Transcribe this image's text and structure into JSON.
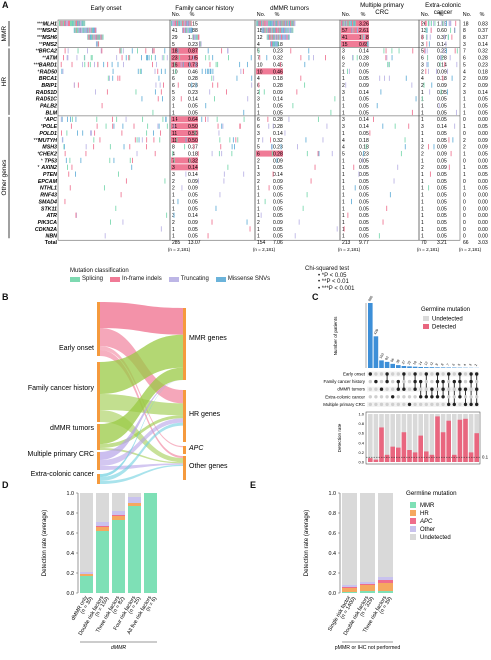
{
  "panels": {
    "A": "A",
    "B": "B",
    "C": "C",
    "D": "D",
    "E": "E"
  },
  "panelA": {
    "groups": [
      "MMR",
      "HR",
      "Other genes"
    ],
    "headers": [
      "Early onset",
      "Family cancer history",
      "dMMR tumors",
      "Multiple primary CRC",
      "Extra-colonic cancer"
    ],
    "col_no": "No.",
    "col_pct": "%",
    "rows": [
      {
        "gene": "MLH1",
        "stars": "***",
        "g": 0
      },
      {
        "gene": "MSH2",
        "stars": "***",
        "g": 0
      },
      {
        "gene": "MSH6",
        "stars": "***",
        "g": 0
      },
      {
        "gene": "PMS2",
        "stars": "**",
        "g": 0
      },
      {
        "gene": "BRCA2",
        "stars": "**",
        "g": 1
      },
      {
        "gene": "ATM",
        "stars": "**",
        "g": 1
      },
      {
        "gene": "BARD1",
        "stars": "***",
        "g": 1
      },
      {
        "gene": "RAD50",
        "stars": "*",
        "g": 1
      },
      {
        "gene": "BRCA1",
        "stars": "",
        "g": 1
      },
      {
        "gene": "BRIP1",
        "stars": "",
        "g": 1
      },
      {
        "gene": "RAD51D",
        "stars": "",
        "g": 1
      },
      {
        "gene": "RAD51C",
        "stars": "",
        "g": 1
      },
      {
        "gene": "PALB2",
        "stars": "",
        "g": 1
      },
      {
        "gene": "BLM",
        "stars": "",
        "g": 1
      },
      {
        "gene": "APC",
        "stars": "*",
        "g": 2
      },
      {
        "gene": "POLE",
        "stars": "*",
        "g": 2
      },
      {
        "gene": "POLD1",
        "stars": "",
        "g": 2
      },
      {
        "gene": "MUTYH",
        "stars": "***",
        "g": 2
      },
      {
        "gene": "MSH3",
        "stars": "",
        "g": 2
      },
      {
        "gene": "CHEK2",
        "stars": "*",
        "g": 2
      },
      {
        "gene": "TP53",
        "stars": "*",
        "g": 2
      },
      {
        "gene": "AXIN2",
        "stars": "*",
        "g": 2
      },
      {
        "gene": "PTEN",
        "stars": "",
        "g": 2
      },
      {
        "gene": "EPCAM",
        "stars": "",
        "g": 2
      },
      {
        "gene": "NTHL1",
        "stars": "",
        "g": 2
      },
      {
        "gene": "RNF43",
        "stars": "",
        "g": 2
      },
      {
        "gene": "SMAD4",
        "stars": "",
        "g": 2
      },
      {
        "gene": "STK11",
        "stars": "",
        "g": 2
      },
      {
        "gene": "ATR",
        "stars": "",
        "g": 2
      },
      {
        "gene": "PIK3CA",
        "stars": "",
        "g": 2
      },
      {
        "gene": "CDKN2A",
        "stars": "",
        "g": 2
      },
      {
        "gene": "NBN",
        "stars": "",
        "g": 2
      },
      {
        "gene": "Total",
        "stars": "",
        "g": 3
      }
    ],
    "stats": [
      [
        [
          "47",
          "2.15"
        ],
        [
          "41",
          "1.88"
        ],
        [
          "29",
          "1.33"
        ],
        [
          "5",
          "0.23"
        ],
        [
          "18",
          "0.87"
        ],
        [
          "23",
          "1.05"
        ],
        [
          "16",
          "0.73"
        ],
        [
          "10",
          "0.46"
        ],
        [
          "6",
          "0.28"
        ],
        [
          "6",
          "0.28"
        ],
        [
          "5",
          "0.23"
        ],
        [
          "3",
          "0.14"
        ],
        [
          "1",
          "0.05"
        ],
        [
          "1",
          "0.05"
        ],
        [
          "14",
          "0.64"
        ],
        [
          "11",
          "0.50"
        ],
        [
          "11",
          "0.50"
        ],
        [
          "11",
          "0.50"
        ],
        [
          "8",
          "0.37"
        ],
        [
          "4",
          "0.18"
        ],
        [
          "7",
          "0.32"
        ],
        [
          "3",
          "0.14"
        ],
        [
          "3",
          "0.14"
        ],
        [
          "2",
          "0.09"
        ],
        [
          "2",
          "0.09"
        ],
        [
          "1",
          "0.05"
        ],
        [
          "1",
          "0.05"
        ],
        [
          "1",
          "0.05"
        ],
        [
          "3",
          "0.14"
        ],
        [
          "2",
          "0.09"
        ],
        [
          "1",
          "0.05"
        ],
        [
          "1",
          "0.05"
        ],
        [
          "285",
          "13.07"
        ]
      ],
      [
        [
          "37",
          "1.70"
        ],
        [
          "18",
          "0.83"
        ],
        [
          "12",
          "0.55"
        ],
        [
          "4",
          "0.18"
        ],
        [
          "5",
          "0.23"
        ],
        [
          "7",
          "0.32"
        ],
        [
          "10",
          "0.46"
        ],
        [
          "10",
          "0.46"
        ],
        [
          "4",
          "0.18"
        ],
        [
          "6",
          "0.28"
        ],
        [
          "2",
          "0.09"
        ],
        [
          "3",
          "0.14"
        ],
        [
          "1",
          "0.05"
        ],
        [
          "1",
          "0.05"
        ],
        [
          "6",
          "0.28"
        ],
        [
          "6",
          "0.28"
        ],
        [
          "3",
          "0.14"
        ],
        [
          "7",
          "0.32"
        ],
        [
          "5",
          "0.23"
        ],
        [
          "6",
          "0.28"
        ],
        [
          "2",
          "0.09"
        ],
        [
          "1",
          "0.05"
        ],
        [
          "3",
          "0.14"
        ],
        [
          "2",
          "0.09"
        ],
        [
          "1",
          "0.05"
        ],
        [
          "1",
          "0.05"
        ],
        [
          "1",
          "0.05"
        ],
        [
          "1",
          "0.05"
        ],
        [
          "1",
          "0.05"
        ],
        [
          "2",
          "0.09"
        ],
        [
          "1",
          "0.05"
        ],
        [
          "1",
          "0.05"
        ],
        [
          "154",
          "7.06"
        ]
      ],
      [
        [
          "71",
          "3.26"
        ],
        [
          "57",
          "2.61"
        ],
        [
          "41",
          "1.88"
        ],
        [
          "15",
          "0.69"
        ],
        [
          "3",
          "0.14"
        ],
        [
          "6",
          "0.28"
        ],
        [
          "2",
          "0.09"
        ],
        [
          "1",
          "0.05"
        ],
        [
          "1",
          "0.05"
        ],
        [
          "2",
          "0.09"
        ],
        [
          "3",
          "0.14"
        ],
        [
          "1",
          "0.05"
        ],
        [
          "1",
          "0.05"
        ],
        [
          "1",
          "0.05"
        ],
        [
          "3",
          "0.14"
        ],
        [
          "3",
          "0.14"
        ],
        [
          "1",
          "0.05"
        ],
        [
          "4",
          "0.18"
        ],
        [
          "4",
          "0.18"
        ],
        [
          "5",
          "0.23"
        ],
        [
          "1",
          "0.05"
        ],
        [
          "1",
          "0.05"
        ],
        [
          "1",
          "0.05"
        ],
        [
          "1",
          "0.05"
        ],
        [
          "1",
          "0.05"
        ],
        [
          "1",
          "0.05"
        ],
        [
          "1",
          "0.05"
        ],
        [
          "1",
          "0.05"
        ],
        [
          "1",
          "0.05"
        ],
        [
          "1",
          "0.05"
        ],
        [
          "1",
          "0.05"
        ],
        [
          "1",
          "0.05"
        ],
        [
          "213",
          "9.77"
        ]
      ],
      [
        [
          "26",
          "1.19"
        ],
        [
          "13",
          "0.60"
        ],
        [
          "8",
          "0.37"
        ],
        [
          "3",
          "0.14"
        ],
        [
          "5",
          "0.23"
        ],
        [
          "6",
          "0.28"
        ],
        [
          "3",
          "0.14"
        ],
        [
          "2",
          "0.09"
        ],
        [
          "4",
          "0.18"
        ],
        [
          "2",
          "0.09"
        ],
        [
          "1",
          "0.05"
        ],
        [
          "1",
          "0.05"
        ],
        [
          "1",
          "0.05"
        ],
        [
          "1",
          "0.05"
        ],
        [
          "1",
          "0.05"
        ],
        [
          "3",
          "0.14"
        ],
        [
          "1",
          "0.05"
        ],
        [
          "1",
          "0.05"
        ],
        [
          "2",
          "0.09"
        ],
        [
          "2",
          "0.09"
        ],
        [
          "1",
          "0.05"
        ],
        [
          "2",
          "0.09"
        ],
        [
          "1",
          "0.05"
        ],
        [
          "1",
          "0.05"
        ],
        [
          "1",
          "0.05"
        ],
        [
          "1",
          "0.05"
        ],
        [
          "1",
          "0.05"
        ],
        [
          "1",
          "0.05"
        ],
        [
          "1",
          "0.05"
        ],
        [
          "1",
          "0.05"
        ],
        [
          "1",
          "0.05"
        ],
        [
          "1",
          "0.05"
        ],
        [
          "70",
          "3.21"
        ]
      ],
      [
        [
          "18",
          "0.83"
        ],
        [
          "8",
          "0.37"
        ],
        [
          "8",
          "0.37"
        ],
        [
          "3",
          "0.14"
        ],
        [
          "7",
          "0.32"
        ],
        [
          "6",
          "0.28"
        ],
        [
          "5",
          "0.23"
        ],
        [
          "4",
          "0.18"
        ],
        [
          "2",
          "0.09"
        ],
        [
          "2",
          "0.09"
        ],
        [
          "3",
          "0.14"
        ],
        [
          "1",
          "0.05"
        ],
        [
          "1",
          "0.05"
        ],
        [
          "1",
          "0.05"
        ],
        [
          "0",
          "0.00"
        ],
        [
          "1",
          "0.05"
        ],
        [
          "0",
          "0.00"
        ],
        [
          "2",
          "0.09"
        ],
        [
          "2",
          "0.09"
        ],
        [
          "1",
          "0.05"
        ],
        [
          "0",
          "0.00"
        ],
        [
          "1",
          "0.05"
        ],
        [
          "1",
          "0.05"
        ],
        [
          "0",
          "0.00"
        ],
        [
          "1",
          "0.05"
        ],
        [
          "0",
          "0.00"
        ],
        [
          "0",
          "0.00"
        ],
        [
          "0",
          "0.00"
        ],
        [
          "0",
          "0.00"
        ],
        [
          "0",
          "0.00"
        ],
        [
          "0",
          "0.00"
        ],
        [
          "0",
          "0.00"
        ],
        [
          "66",
          "3.03"
        ]
      ]
    ],
    "highlight": [
      [
        4,
        5,
        6,
        14,
        15,
        16,
        17,
        20,
        21
      ],
      [
        7,
        19
      ],
      [
        0,
        1,
        2,
        3
      ],
      [],
      []
    ],
    "n_labels": [
      "(n = 2,181)",
      "(n = 2,181)",
      "(n = 2,181)",
      "(n = 2,181)",
      "(n = 2,181)"
    ],
    "legend_title": "Mutation classification",
    "legend_items": [
      {
        "label": "Splicing",
        "color": "#7ed9b1"
      },
      {
        "label": "In-frame indels",
        "color": "#f07a96"
      },
      {
        "label": "Truncating",
        "color": "#bdb6e6"
      },
      {
        "label": "Missense SNVs",
        "color": "#6bb3da"
      }
    ],
    "chi_title": "Chi-squared test",
    "chi_items": [
      "*P < 0.05",
      "**P < 0.01",
      "***P < 0.001"
    ],
    "highlight_color": "#f07a96"
  },
  "panelB": {
    "left": [
      "Early onset",
      "Family cancer history",
      "dMMR tumors",
      "Multiple primary CRC",
      "Extra-colonic cancer"
    ],
    "right": [
      "MMR genes",
      "HR genes",
      "APC",
      "Other genes"
    ]
  },
  "panelC": {
    "y_label": "Number of patients",
    "values": [
      880,
      429,
      103,
      83,
      56,
      39,
      27,
      22,
      18,
      14,
      12,
      11,
      9,
      8,
      7,
      6,
      5,
      4,
      3,
      2
    ],
    "bar_labels": [
      "880",
      "429",
      "103",
      "83",
      "56",
      "39",
      "27",
      "22",
      "18",
      "14",
      "12",
      "11",
      "9",
      "8",
      "7",
      "6",
      "5",
      "4",
      "3",
      "2"
    ],
    "rows": [
      "Early onset",
      "Family cancer history",
      "dMMR tumors",
      "Extra-colonic cancer",
      "Multiple primary CRC"
    ],
    "legend_title": "Germline mutation",
    "legend_items": [
      {
        "label": "Undetected",
        "color": "#d9d9d9"
      },
      {
        "label": "Detected",
        "color": "#e9667f"
      }
    ],
    "dr_label": "Detection rate",
    "dr_ticks": [
      "1.0",
      "0.8",
      "0.6",
      "0.4",
      "0.2",
      "0.0"
    ],
    "dr_ref": "0.1",
    "detection": [
      0.08,
      0.05,
      0.72,
      0.15,
      0.32,
      0.3,
      0.62,
      0.25,
      0.2,
      0.55,
      0.22,
      0.15,
      0.95,
      0.62,
      0.86,
      0.15,
      0.88,
      0.9,
      0.2,
      0.6
    ]
  },
  "panelD": {
    "y_label": "Detection rate (average)",
    "y_ticks": [
      "1.0",
      "0.8",
      "0.6",
      "0.4",
      "0.2",
      "0.0"
    ],
    "x_group": "dMMR",
    "categories": [
      "dMMR only\n(n = 30)",
      "Double risk factors\n(n = 150)",
      "Three risk factors\n(n = 82)",
      "Four risk factors\n(n = 25)",
      "All five risk factors\n(n = 6)"
    ],
    "cat_lines": [
      [
        "dMMR only",
        "(n = 30)"
      ],
      [
        "Double risk factors",
        "(n = 150)"
      ],
      [
        "Three risk factors",
        "(n = 82)"
      ],
      [
        "Four risk factors",
        "(n = 25)"
      ],
      [
        "All five risk factors",
        "(n = 6)"
      ]
    ],
    "stacks": [
      {
        "MMR": 0.17,
        "HR": 0.02,
        "APC": 0.0,
        "Other": 0.02
      },
      {
        "MMR": 0.62,
        "HR": 0.04,
        "APC": 0.01,
        "Other": 0.04
      },
      {
        "MMR": 0.73,
        "HR": 0.04,
        "APC": 0.01,
        "Other": 0.04
      },
      {
        "MMR": 0.87,
        "HR": 0.03,
        "APC": 0.0,
        "Other": 0.06
      },
      {
        "MMR": 1.0,
        "HR": 0.0,
        "APC": 0.0,
        "Other": 0.0
      }
    ]
  },
  "panelE": {
    "y_label": "Detection rate (average)",
    "y_ticks": [
      "1.0",
      "0.8",
      "0.6",
      "0.4",
      "0.2",
      "0.0"
    ],
    "x_group": "pMMR or IHC not performed",
    "cat_lines": [
      [
        "Single risk factor",
        "(n = 1400)"
      ],
      [
        "Double risk factors",
        "(n = 329)"
      ],
      [
        "Three risk factors",
        "(n = 39)"
      ]
    ],
    "stacks": [
      {
        "MMR": 0.01,
        "HR": 0.04,
        "APC": 0.01,
        "Other": 0.02
      },
      {
        "MMR": 0.02,
        "HR": 0.06,
        "APC": 0.01,
        "Other": 0.02
      },
      {
        "MMR": 0.02,
        "HR": 0.08,
        "APC": 0.03,
        "Other": 0.03
      }
    ],
    "legend_title": "Germline mutation",
    "legend_items": [
      {
        "label": "MMR",
        "color": "#7ee0b6"
      },
      {
        "label": "HR",
        "color": "#f5a860"
      },
      {
        "label": "APC",
        "color": "#ef6d8c"
      },
      {
        "label": "Other",
        "color": "#c9c2ee"
      },
      {
        "label": "Undetected",
        "color": "#d9d9d9"
      }
    ]
  },
  "colors": {
    "MMR": "#7ee0b6",
    "HR": "#f5a860",
    "APC": "#ef6d8c",
    "Other": "#c9c2ee",
    "Undetected": "#d9d9d9",
    "C_bar": "#3d8fd8",
    "C_detected": "#e9667f",
    "splicing": "#7ed9b1",
    "indel": "#f07a96",
    "trunc": "#bdb6e6",
    "missense": "#6bb3da"
  }
}
